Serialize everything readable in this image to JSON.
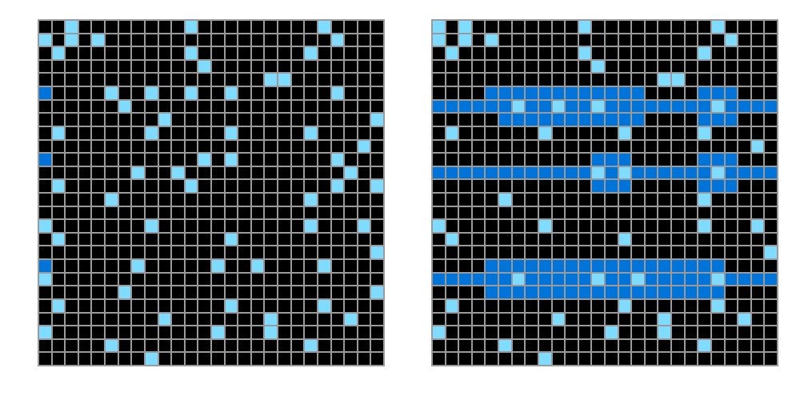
{
  "puzzle": {
    "grid_size": 26,
    "colors": {
      "empty": "#000000",
      "dot": "#7fdbff",
      "marker": "#0074d9",
      "fill": "#0074d9",
      "gridline": "#9a9a9a"
    },
    "input": {
      "rows": [
        "00200000000200000000020000",
        "20202000000000000000002000",
        "02000000000200000000200000",
        "00000000000020000000000000",
        "00000000000000000220000000",
        "30000200200200200000002000",
        "00000020000000000000000000",
        "00000000020000000000000002",
        "02000000200000200000200000",
        "00000000000000000000000020",
        "30000000000020200000002000",
        "00000002002000000000000200",
        "02000000000200000000002002",
        "00000200000000000000200000",
        "00000000000000000000000000",
        "20000000200000000000200020",
        "02000000000000200000000000",
        "00000000000000000000000002",
        "30000002000002002000020000",
        "20000000000000000000000000",
        "00000020000000000000000002",
        "02000000000000200000020000",
        "00000000020000000200000200",
        "20000000000002000200000000",
        "00000200000000000000200000",
        "00000000200000000000000000"
      ]
    },
    "output": {
      "rows": [
        "20200000000200000000020000",
        "20202000000000000000002000",
        "02000000000200000000200000",
        "00000000000020000000000000",
        "00000000000000000220000000",
        "00001111111111110000111000",
        "11111121121121111111121111",
        "00000111111111110000111000",
        "02000000200000200000200000",
        "00000000000000000000000020",
        "00000000000011100000111000",
        "11111111111121211111121111",
        "00000000000011100000111000",
        "00000200000000000000200000",
        "00000000000000000000000000",
        "20000000200000000000200020",
        "02000000000000200000000000",
        "00000000000000000000000002",
        "00001111111111111111110000",
        "11111121111121121111121111",
        "00001111111111111111110000",
        "02000000000000200000020000",
        "00000000020000000200000200",
        "20000000000002000200000000",
        "00000200000000000000200000",
        "00000000200000000000000000"
      ]
    }
  }
}
